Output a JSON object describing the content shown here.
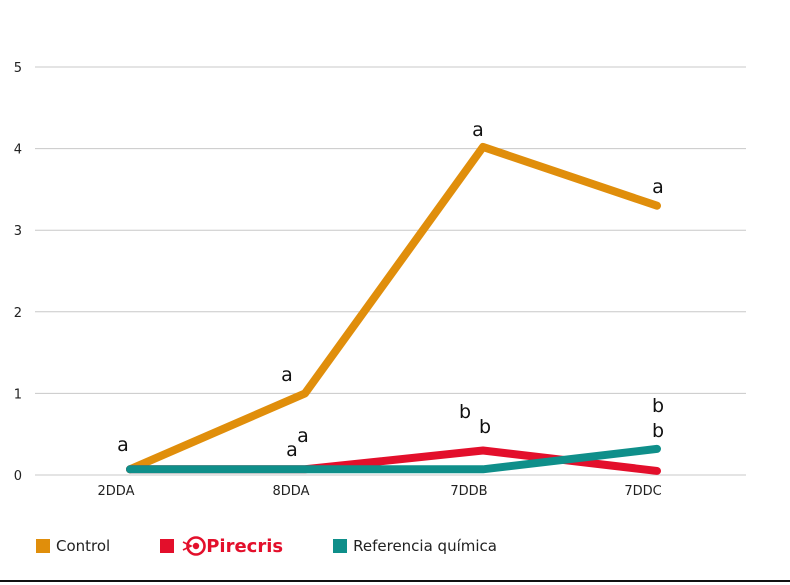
{
  "chart_data": {
    "type": "line",
    "categories": [
      "2DDA",
      "8DDA",
      "7DDB",
      "7DDC"
    ],
    "yticks": [
      "0",
      "1",
      "2",
      "3",
      "4",
      "5"
    ],
    "ylim": [
      0,
      5
    ],
    "grid": true,
    "legend_position": "bottom-left",
    "series": [
      {
        "name": "Control",
        "color": "#e08e0b",
        "values": [
          0.07,
          1.0,
          4.02,
          3.3
        ],
        "labels": [
          "a",
          "a",
          "a",
          "a"
        ]
      },
      {
        "name": "Pirecris",
        "color": "#e30f2b",
        "values": [
          0.07,
          0.07,
          0.3,
          0.05
        ],
        "labels": [
          "",
          "a",
          "b",
          "b"
        ]
      },
      {
        "name": "Referencia química",
        "color": "#0f8f8a",
        "values": [
          0.07,
          0.07,
          0.07,
          0.32
        ],
        "labels": [
          "",
          "a",
          "b",
          "b"
        ]
      }
    ]
  },
  "legend": {
    "control": "Control",
    "pirecris": "Pirecris",
    "referencia": "Referencia química"
  }
}
